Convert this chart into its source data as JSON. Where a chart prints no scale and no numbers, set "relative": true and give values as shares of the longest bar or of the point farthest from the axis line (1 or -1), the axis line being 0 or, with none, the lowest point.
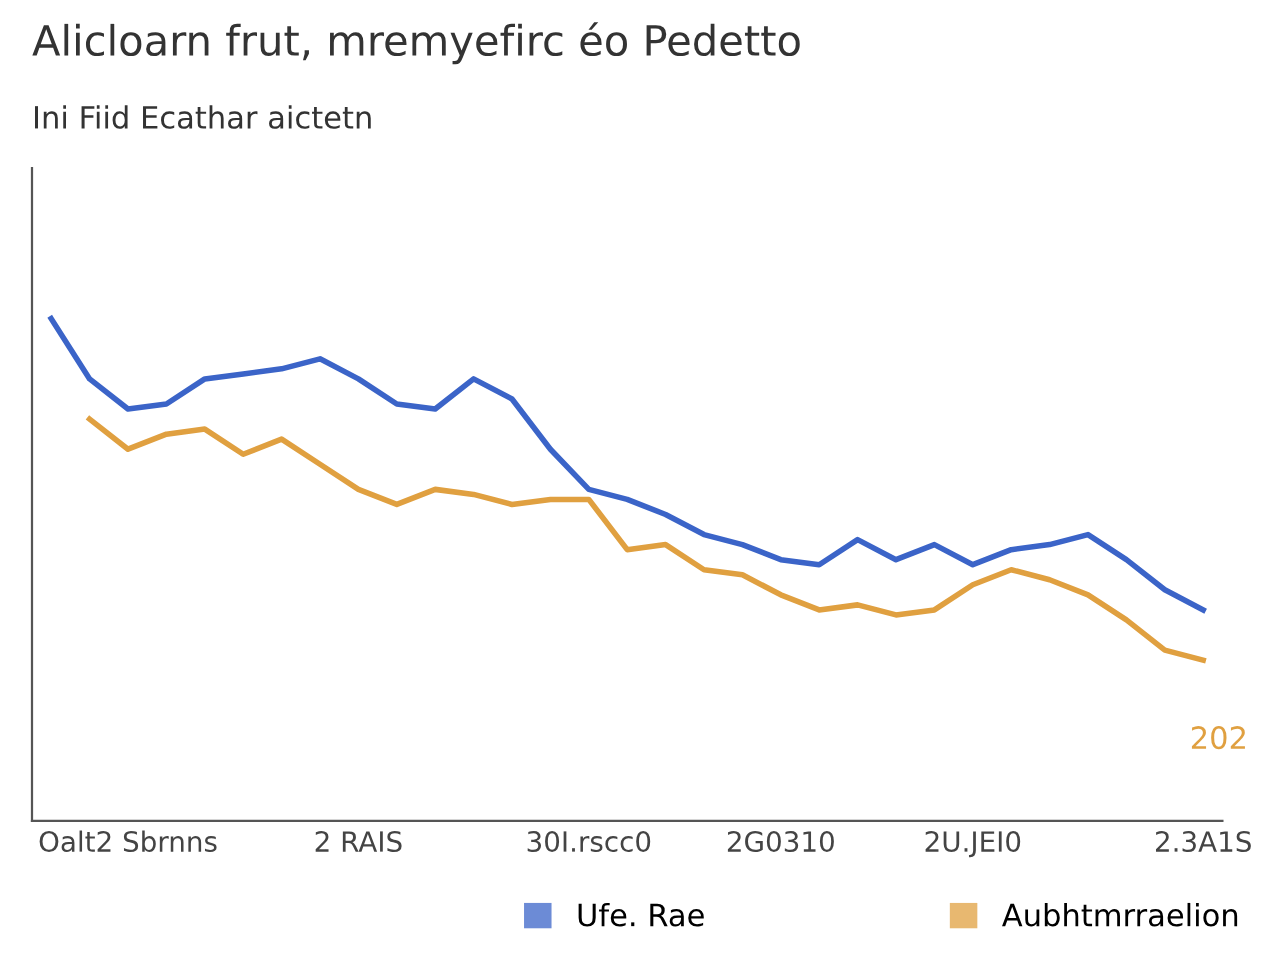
{
  "chart_data": {
    "type": "line",
    "title": "Alicloarn frut, mremyefirc éo Pedetto",
    "subtitle": "Ini Fiid Ecathar aictetn",
    "relative": true,
    "categories": [
      null,
      null,
      "Oalt2 Sbrnns",
      null,
      null,
      null,
      null,
      null,
      "2 RAIS",
      null,
      null,
      null,
      null,
      null,
      "30I.rscc0",
      null,
      null,
      null,
      null,
      "2G0310",
      null,
      null,
      null,
      null,
      "2U.JEI0",
      null,
      null,
      null,
      null,
      null,
      "2.3A1S"
    ],
    "series": [
      {
        "name": "Ufe. Rae",
        "color": "#3b64c8",
        "values": [
          1.0,
          0.88,
          0.82,
          0.83,
          0.88,
          0.89,
          0.9,
          0.92,
          0.88,
          0.83,
          0.82,
          0.88,
          0.84,
          0.74,
          0.66,
          0.64,
          0.61,
          0.57,
          0.55,
          0.52,
          0.51,
          0.56,
          0.52,
          0.55,
          0.51,
          0.54,
          0.55,
          0.57,
          0.52,
          0.46,
          0.42
        ]
      },
      {
        "name": "Aubhtmrraelion",
        "color": "#e0a040",
        "values": [
          null,
          0.8,
          0.74,
          0.77,
          0.78,
          0.73,
          0.76,
          0.71,
          0.66,
          0.63,
          0.66,
          0.65,
          0.63,
          0.64,
          0.64,
          0.54,
          0.55,
          0.5,
          0.49,
          0.45,
          0.42,
          0.43,
          0.41,
          0.42,
          0.47,
          0.5,
          0.48,
          0.45,
          0.4,
          0.34,
          0.32
        ]
      }
    ],
    "annotations": [
      "202"
    ],
    "legend": "bottom",
    "marker": "none",
    "line_style": "solid"
  }
}
